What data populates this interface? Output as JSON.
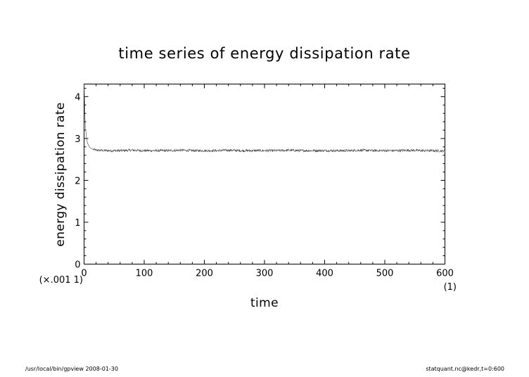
{
  "chart_data": {
    "type": "line",
    "title": "time series of energy dissipation rate",
    "xlabel": "time",
    "ylabel": "energy dissipation rate",
    "x_unit": "(1)",
    "y_unit": "(×.001 1)",
    "xlim": [
      0,
      600
    ],
    "ylim": [
      0,
      4.3
    ],
    "xticks": [
      0,
      100,
      200,
      300,
      400,
      500,
      600
    ],
    "yticks": [
      0,
      1,
      2,
      3,
      4
    ],
    "xtick_labels": [
      "0",
      "100",
      "200",
      "300",
      "400",
      "500",
      "600"
    ],
    "ytick_labels": [
      "0",
      "1",
      "2",
      "3",
      "4"
    ],
    "grid": false,
    "series": [
      {
        "x": [
          0,
          1,
          2,
          4,
          6,
          8,
          10,
          15,
          20,
          40,
          60,
          80,
          100,
          120,
          140,
          160,
          180,
          200,
          220,
          240,
          260,
          280,
          300,
          320,
          340,
          360,
          380,
          400,
          420,
          440,
          460,
          480,
          500,
          520,
          540,
          560,
          580,
          600
        ],
        "y": [
          4.3,
          3.8,
          3.35,
          3.0,
          2.88,
          2.82,
          2.78,
          2.74,
          2.72,
          2.71,
          2.71,
          2.72,
          2.71,
          2.71,
          2.71,
          2.72,
          2.71,
          2.71,
          2.71,
          2.72,
          2.71,
          2.71,
          2.71,
          2.71,
          2.72,
          2.71,
          2.71,
          2.71,
          2.71,
          2.71,
          2.72,
          2.71,
          2.71,
          2.71,
          2.72,
          2.71,
          2.71,
          2.7
        ],
        "fluctuation_amplitude": 0.03,
        "color": "#444444"
      }
    ]
  },
  "footer": {
    "left": "/usr/local/bin/gpview   2008-01-30",
    "right": "statquant.nc@kedr,t=0:600"
  }
}
